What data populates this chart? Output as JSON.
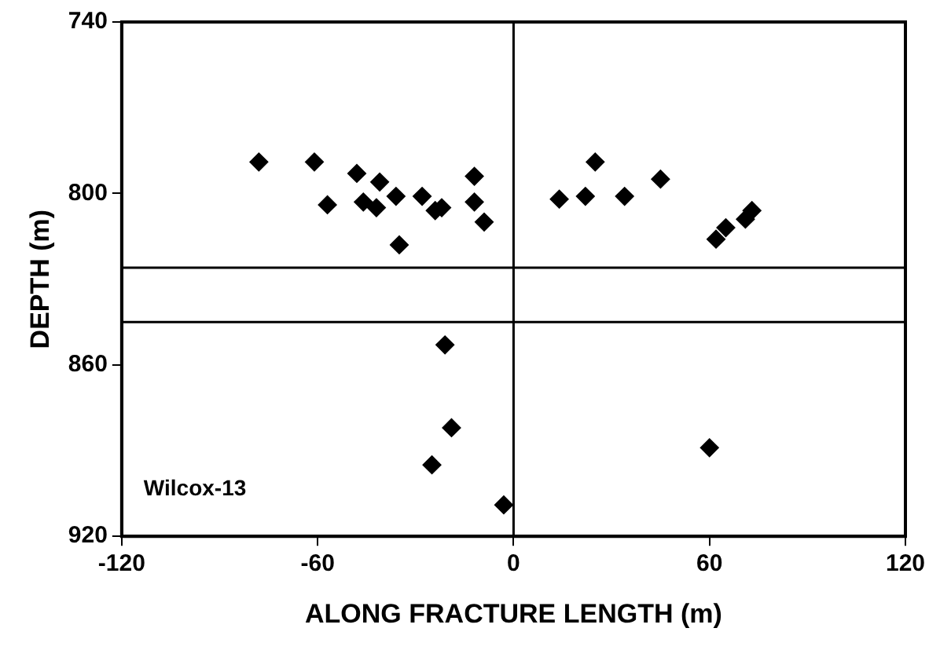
{
  "chart_data": {
    "type": "scatter",
    "xlabel": "ALONG FRACTURE LENGTH (m)",
    "ylabel": "DEPTH (m)",
    "x": [
      -78,
      -61,
      -48,
      -41,
      -57,
      -46,
      -42,
      -36,
      -28,
      -24,
      -22,
      -35,
      -12,
      -12,
      -9,
      14,
      22,
      25,
      34,
      45,
      62,
      65,
      71,
      73,
      -21,
      -19,
      -25,
      -3,
      60
    ],
    "series": [
      {
        "color": "#000000",
        "values": [
          789,
          789,
          793,
          796,
          804,
          803,
          805,
          801,
          801,
          806,
          805,
          818,
          794,
          803,
          810,
          802,
          801,
          789,
          801,
          795,
          816,
          812,
          809,
          806,
          853,
          882,
          895,
          909,
          889
        ]
      }
    ],
    "xlim": [
      -120,
      120
    ],
    "xticks": [
      -120,
      -60,
      0,
      60,
      120
    ],
    "ylim": [
      920,
      740
    ],
    "yticks": [
      740,
      800,
      860,
      920
    ],
    "ref_lines": [
      {
        "axis": "x",
        "value": 0
      },
      {
        "axis": "y",
        "value": 826
      },
      {
        "axis": "y",
        "value": 845
      }
    ],
    "annotations": [
      "Wilcox-13"
    ],
    "marker": "diamond",
    "grid": false,
    "legend": false
  }
}
